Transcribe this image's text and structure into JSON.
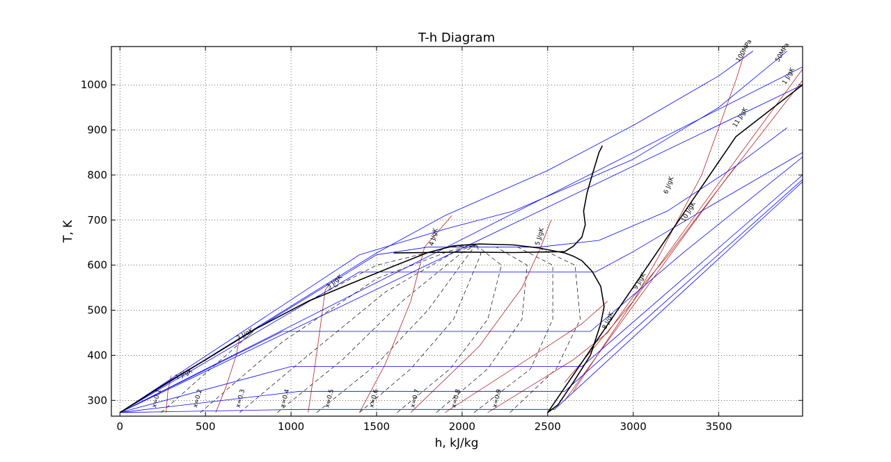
{
  "chart_data": {
    "type": "line",
    "title": "T-h Diagram",
    "xlabel": "h, kJ/kg",
    "ylabel": "T, K",
    "xlim": [
      -50,
      3990
    ],
    "ylim": [
      265,
      1085
    ],
    "grid": true,
    "x_ticks": [
      0,
      500,
      1000,
      1500,
      2000,
      2500,
      3000,
      3500
    ],
    "y_ticks": [
      300,
      400,
      500,
      600,
      700,
      800,
      900,
      1000
    ],
    "colors": {
      "isobar": "#0000ff",
      "isentrope": "#b22222",
      "quality": "#000000",
      "boundary": "#000000",
      "grid": "#000000"
    },
    "series": [
      {
        "name": "",
        "kind": "boundary",
        "points": [
          [
            0,
            273
          ],
          [
            300,
            345
          ],
          [
            500,
            390
          ],
          [
            800,
            460
          ],
          [
            1100,
            520
          ],
          [
            1400,
            567
          ],
          [
            1600,
            598
          ],
          [
            1800,
            628
          ],
          [
            1950,
            643
          ],
          [
            2100,
            647
          ],
          [
            2300,
            645
          ],
          [
            2450,
            638
          ],
          [
            2600,
            627
          ],
          [
            2650,
            620
          ],
          [
            2700,
            610
          ],
          [
            2760,
            586
          ],
          [
            2810,
            553
          ],
          [
            2830,
            508
          ],
          [
            2810,
            470
          ],
          [
            2750,
            400
          ],
          [
            2650,
            340
          ],
          [
            2560,
            290
          ],
          [
            2500,
            273
          ]
        ]
      },
      {
        "name": "",
        "kind": "boundary",
        "points": [
          [
            2600,
            630
          ],
          [
            2650,
            642
          ],
          [
            2700,
            662
          ],
          [
            2720,
            690
          ],
          [
            2710,
            720
          ],
          [
            2730,
            760
          ],
          [
            2760,
            800
          ],
          [
            2800,
            850
          ],
          [
            2820,
            865
          ]
        ]
      },
      {
        "name": "",
        "kind": "boundary",
        "points": [
          [
            1600,
            627
          ],
          [
            2000,
            629
          ],
          [
            2300,
            628
          ],
          [
            2600,
            630
          ]
        ]
      },
      {
        "name": "",
        "kind": "boundary",
        "points": [
          [
            2500,
            273
          ],
          [
            3600,
            885
          ],
          [
            3990,
            1000
          ]
        ]
      },
      {
        "name": "",
        "kind": "isobar",
        "points": [
          [
            0,
            273
          ],
          [
            1500,
            623
          ],
          [
            1800,
            640
          ],
          [
            2150,
            640
          ],
          [
            2450,
            640
          ],
          [
            2800,
            655
          ],
          [
            3200,
            720
          ],
          [
            3600,
            820
          ],
          [
            3900,
            905
          ]
        ]
      },
      {
        "name": "",
        "kind": "isobar",
        "points": [
          [
            0,
            273
          ],
          [
            1400,
            585
          ],
          [
            2780,
            585
          ],
          [
            3000,
            630
          ],
          [
            3400,
            720
          ],
          [
            3990,
            850
          ]
        ]
      },
      {
        "name": "",
        "kind": "isobar",
        "points": [
          [
            0,
            273
          ],
          [
            950,
            453
          ],
          [
            2750,
            453
          ],
          [
            3300,
            630
          ],
          [
            3990,
            840
          ]
        ]
      },
      {
        "name": "",
        "kind": "isobar",
        "points": [
          [
            0,
            273
          ],
          [
            1000,
            375
          ],
          [
            2700,
            375
          ],
          [
            3990,
            800
          ]
        ]
      },
      {
        "name": "",
        "kind": "isobar",
        "points": [
          [
            0,
            273
          ],
          [
            1050,
            320
          ],
          [
            2600,
            320
          ],
          [
            3990,
            790
          ]
        ]
      },
      {
        "name": "",
        "kind": "isobar",
        "points": [
          [
            0,
            273
          ],
          [
            1050,
            280
          ],
          [
            2540,
            280
          ],
          [
            3990,
            785
          ]
        ]
      },
      {
        "name": "",
        "kind": "isobar",
        "points": [
          [
            0,
            273
          ],
          [
            1500,
            627
          ],
          [
            1900,
            710
          ],
          [
            2500,
            810
          ],
          [
            3000,
            910
          ],
          [
            3500,
            1020
          ],
          [
            3700,
            1075
          ]
        ]
      },
      {
        "name": "",
        "kind": "isobar",
        "points": [
          [
            0,
            273
          ],
          [
            1400,
            623
          ],
          [
            1900,
            680
          ],
          [
            2300,
            720
          ],
          [
            3000,
            835
          ],
          [
            3500,
            950
          ],
          [
            3900,
            1075
          ]
        ]
      },
      {
        "name": "",
        "kind": "isobar",
        "points": [
          [
            0,
            273
          ],
          [
            3990,
            1040
          ]
        ]
      },
      {
        "name": "",
        "kind": "isobar",
        "points": [
          [
            0,
            273
          ],
          [
            3990,
            1000
          ]
        ]
      },
      {
        "name": "",
        "kind": "isentrope",
        "points": [
          [
            270,
            273
          ],
          [
            280,
            320
          ],
          [
            300,
            355
          ]
        ]
      },
      {
        "name": "",
        "kind": "isentrope",
        "points": [
          [
            560,
            273
          ],
          [
            620,
            330
          ],
          [
            680,
            400
          ],
          [
            700,
            440
          ]
        ]
      },
      {
        "name": "",
        "kind": "isentrope",
        "points": [
          [
            1100,
            273
          ],
          [
            1130,
            350
          ],
          [
            1170,
            460
          ],
          [
            1200,
            545
          ],
          [
            1230,
            560
          ]
        ]
      },
      {
        "name": "",
        "kind": "isentrope",
        "points": [
          [
            1400,
            273
          ],
          [
            1550,
            380
          ],
          [
            1700,
            520
          ],
          [
            1780,
            640
          ],
          [
            1940,
            710
          ]
        ]
      },
      {
        "name": "",
        "kind": "isentrope",
        "points": [
          [
            1700,
            273
          ],
          [
            2100,
            420
          ],
          [
            2350,
            550
          ],
          [
            2460,
            640
          ],
          [
            2520,
            700
          ]
        ]
      },
      {
        "name": "",
        "kind": "isentrope",
        "points": [
          [
            1900,
            273
          ],
          [
            2500,
            420
          ],
          [
            2700,
            470
          ],
          [
            2850,
            520
          ]
        ]
      },
      {
        "name": "",
        "kind": "isentrope",
        "points": [
          [
            2150,
            273
          ],
          [
            2650,
            390
          ],
          [
            2850,
            450
          ],
          [
            3000,
            530
          ],
          [
            3200,
            620
          ],
          [
            3600,
            820
          ]
        ]
      },
      {
        "name": "",
        "kind": "isentrope",
        "points": [
          [
            2600,
            340
          ],
          [
            2800,
            430
          ],
          [
            3000,
            520
          ],
          [
            3150,
            620
          ],
          [
            3400,
            800
          ],
          [
            3600,
            1010
          ],
          [
            3650,
            1070
          ]
        ]
      },
      {
        "name": "",
        "kind": "isentrope",
        "points": [
          [
            2650,
            320
          ],
          [
            3000,
            520
          ],
          [
            3400,
            730
          ],
          [
            3990,
            1035
          ]
        ]
      },
      {
        "name": "",
        "kind": "isentrope",
        "points": [
          [
            2600,
            300
          ],
          [
            3000,
            510
          ],
          [
            3500,
            770
          ],
          [
            3990,
            1010
          ]
        ]
      },
      {
        "name": "",
        "kind": "quality",
        "points": [
          [
            240,
            273
          ],
          [
            800,
            460
          ],
          [
            1500,
            600
          ],
          [
            1930,
            640
          ],
          [
            2080,
            645
          ]
        ]
      },
      {
        "name": "",
        "kind": "quality",
        "points": [
          [
            470,
            273
          ],
          [
            950,
            430
          ],
          [
            1500,
            570
          ],
          [
            1930,
            632
          ],
          [
            2080,
            645
          ]
        ]
      },
      {
        "name": "",
        "kind": "quality",
        "points": [
          [
            700,
            273
          ],
          [
            1100,
            400
          ],
          [
            1550,
            540
          ],
          [
            1950,
            628
          ],
          [
            2080,
            645
          ]
        ]
      },
      {
        "name": "",
        "kind": "quality",
        "points": [
          [
            920,
            273
          ],
          [
            1300,
            390
          ],
          [
            1650,
            520
          ],
          [
            1990,
            625
          ],
          [
            2080,
            645
          ]
        ]
      },
      {
        "name": "",
        "kind": "quality",
        "points": [
          [
            1150,
            273
          ],
          [
            1500,
            380
          ],
          [
            1800,
            500
          ],
          [
            2040,
            625
          ],
          [
            2080,
            645
          ]
        ]
      },
      {
        "name": "",
        "kind": "quality",
        "points": [
          [
            1400,
            273
          ],
          [
            1700,
            370
          ],
          [
            1950,
            480
          ],
          [
            2110,
            625
          ],
          [
            2080,
            645
          ]
        ]
      },
      {
        "name": "",
        "kind": "quality",
        "points": [
          [
            1620,
            273
          ],
          [
            1930,
            370
          ],
          [
            2150,
            480
          ],
          [
            2230,
            600
          ],
          [
            2080,
            645
          ]
        ]
      },
      {
        "name": "",
        "kind": "quality",
        "points": [
          [
            1850,
            273
          ],
          [
            2150,
            370
          ],
          [
            2350,
            480
          ],
          [
            2380,
            600
          ],
          [
            2200,
            640
          ]
        ]
      },
      {
        "name": "",
        "kind": "quality",
        "points": [
          [
            2070,
            273
          ],
          [
            2400,
            370
          ],
          [
            2530,
            480
          ],
          [
            2530,
            600
          ],
          [
            2300,
            645
          ]
        ]
      },
      {
        "name": "",
        "kind": "quality",
        "points": [
          [
            2280,
            273
          ],
          [
            2550,
            370
          ],
          [
            2690,
            480
          ],
          [
            2660,
            600
          ],
          [
            2440,
            640
          ]
        ]
      }
    ],
    "annotations": [
      {
        "text": "x=0.1",
        "x": 210,
        "y": 283,
        "angle": -75
      },
      {
        "text": "x=0.2",
        "x": 450,
        "y": 283,
        "angle": -75
      },
      {
        "text": "x=0.3",
        "x": 700,
        "y": 283,
        "angle": -75
      },
      {
        "text": "x=0.4",
        "x": 960,
        "y": 283,
        "angle": -75
      },
      {
        "text": "x=0.5",
        "x": 1220,
        "y": 283,
        "angle": -75
      },
      {
        "text": "x=0.6",
        "x": 1480,
        "y": 283,
        "angle": -75
      },
      {
        "text": "x=0.7",
        "x": 1720,
        "y": 283,
        "angle": -75
      },
      {
        "text": "x=0.8",
        "x": 1960,
        "y": 283,
        "angle": -75
      },
      {
        "text": "x=0.9",
        "x": 2200,
        "y": 283,
        "angle": -75
      },
      {
        "text": "1 J/gK",
        "x": 330,
        "y": 346,
        "angle": -25
      },
      {
        "text": "2 J/gK",
        "x": 690,
        "y": 433,
        "angle": -30
      },
      {
        "text": "3 J/gK",
        "x": 1220,
        "y": 547,
        "angle": -40
      },
      {
        "text": "4 J/gK",
        "x": 1830,
        "y": 642,
        "angle": -75
      },
      {
        "text": "5 J/gK",
        "x": 2450,
        "y": 643,
        "angle": -75
      },
      {
        "text": "6 J/gK",
        "x": 3200,
        "y": 757,
        "angle": -70
      },
      {
        "text": "8 J/gK",
        "x": 2840,
        "y": 457,
        "angle": -65
      },
      {
        "text": "9 J/gK",
        "x": 3020,
        "y": 545,
        "angle": -60
      },
      {
        "text": "10 J/gK",
        "x": 3300,
        "y": 695,
        "angle": -60
      },
      {
        "text": "11 J/gK",
        "x": 3600,
        "y": 905,
        "angle": -58
      },
      {
        "text": "100MPa",
        "x": 3620,
        "y": 1050,
        "angle": -60
      },
      {
        "text": "50MPa",
        "x": 3850,
        "y": 1050,
        "angle": -60
      },
      {
        "text": "1 J/gK",
        "x": 3890,
        "y": 1000,
        "angle": -60
      }
    ]
  }
}
